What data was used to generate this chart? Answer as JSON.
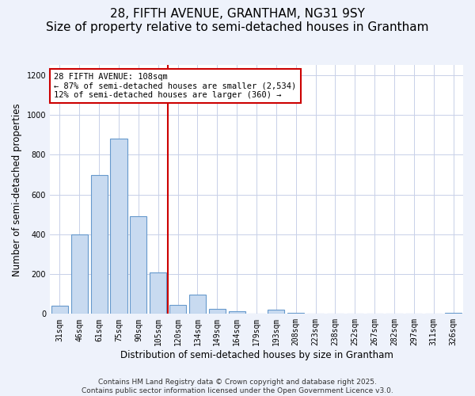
{
  "title": "28, FIFTH AVENUE, GRANTHAM, NG31 9SY",
  "subtitle": "Size of property relative to semi-detached houses in Grantham",
  "xlabel": "Distribution of semi-detached houses by size in Grantham",
  "ylabel": "Number of semi-detached properties",
  "categories": [
    "31sqm",
    "46sqm",
    "61sqm",
    "75sqm",
    "90sqm",
    "105sqm",
    "120sqm",
    "134sqm",
    "149sqm",
    "164sqm",
    "179sqm",
    "193sqm",
    "208sqm",
    "223sqm",
    "238sqm",
    "252sqm",
    "267sqm",
    "282sqm",
    "297sqm",
    "311sqm",
    "326sqm"
  ],
  "values": [
    40,
    400,
    700,
    880,
    490,
    210,
    45,
    95,
    25,
    15,
    0,
    20,
    5,
    0,
    0,
    0,
    0,
    0,
    0,
    0,
    5
  ],
  "bar_color": "#c8daf0",
  "bar_edge_color": "#6699cc",
  "vline_x": 5.5,
  "vline_color": "#cc0000",
  "annotation_line1": "28 FIFTH AVENUE: 108sqm",
  "annotation_line2": "← 87% of semi-detached houses are smaller (2,534)",
  "annotation_line3": "12% of semi-detached houses are larger (360) →",
  "annotation_box_facecolor": "#ffffff",
  "annotation_box_edgecolor": "#cc0000",
  "ylim": [
    0,
    1250
  ],
  "yticks": [
    0,
    200,
    400,
    600,
    800,
    1000,
    1200
  ],
  "footer_line1": "Contains HM Land Registry data © Crown copyright and database right 2025.",
  "footer_line2": "Contains public sector information licensed under the Open Government Licence v3.0.",
  "background_color": "#eef2fb",
  "plot_bg_color": "#ffffff",
  "grid_color": "#c8d0e8",
  "title_fontsize": 11,
  "subtitle_fontsize": 9.5,
  "ylabel_fontsize": 8.5,
  "xlabel_fontsize": 8.5,
  "tick_fontsize": 7,
  "annotation_fontsize": 7.5,
  "footer_fontsize": 6.5
}
